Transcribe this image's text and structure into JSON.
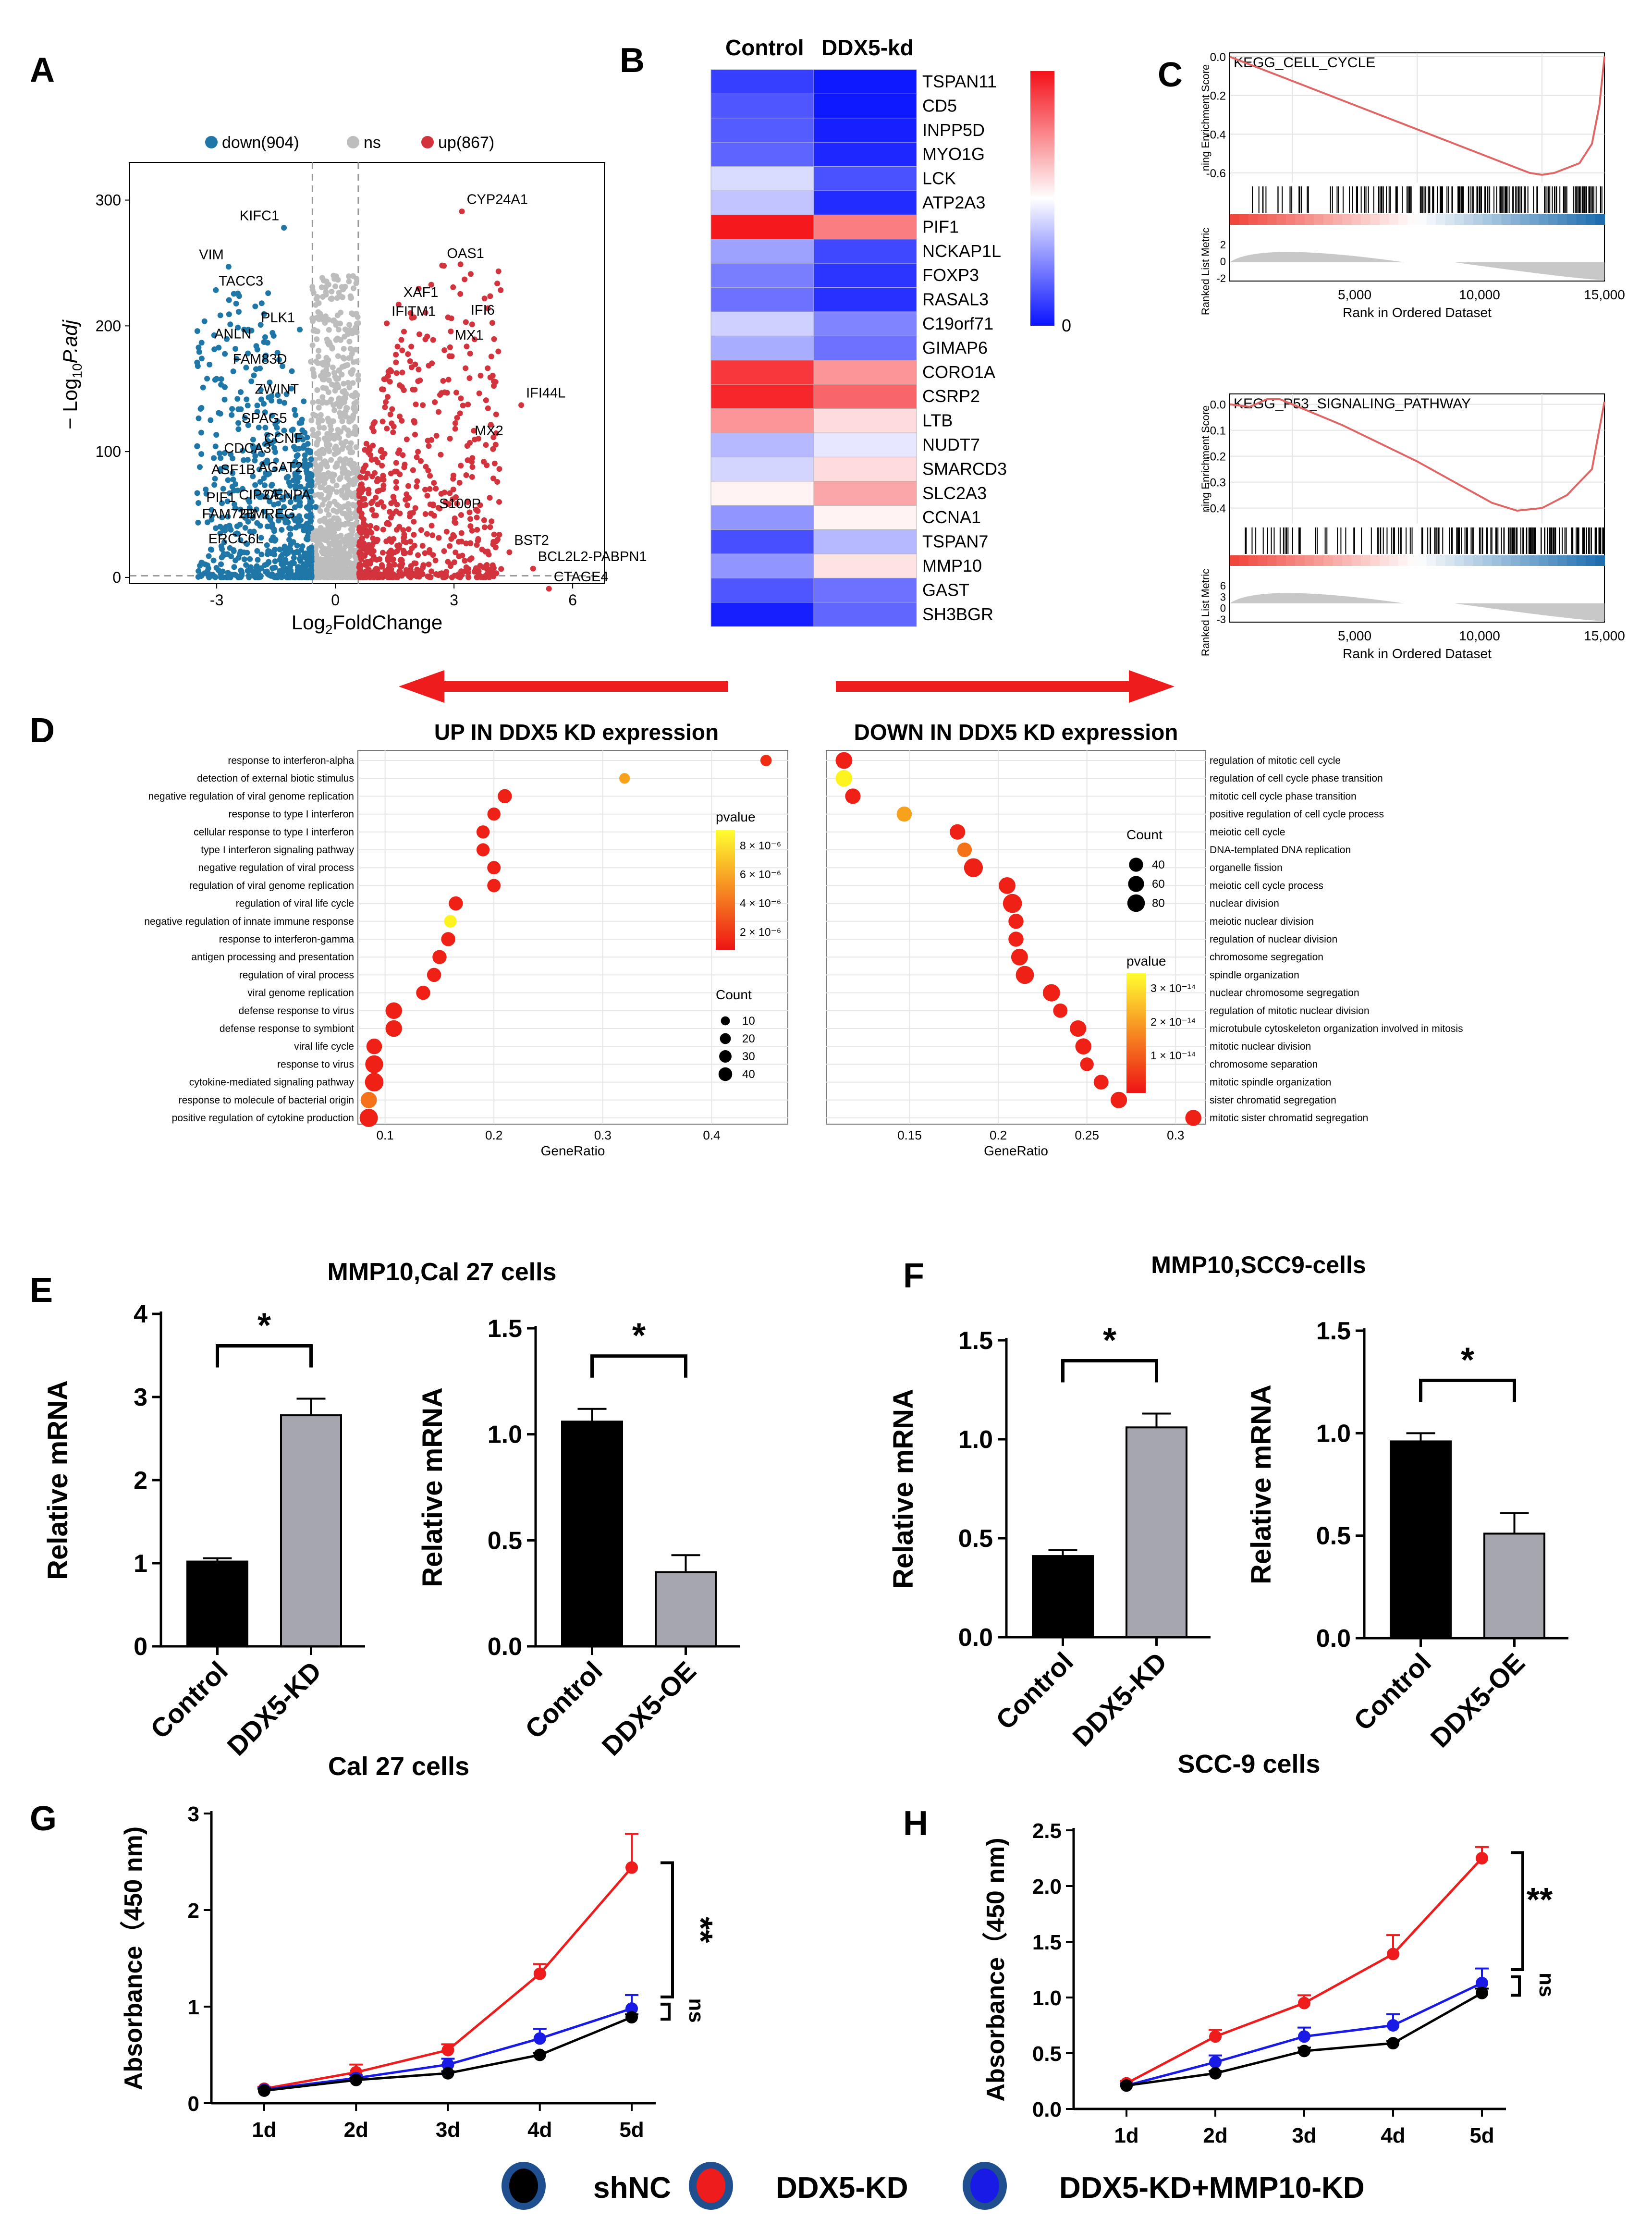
{
  "panel_letters": [
    "A",
    "B",
    "C",
    "D",
    "E",
    "F",
    "G",
    "H"
  ],
  "colors": {
    "down": "#1f77a8",
    "ns": "#bdbdbd",
    "up": "#d2333c",
    "red": "#ee1c1c",
    "blue": "#1a1ae6",
    "black": "#000000",
    "grey": "#a6a6ae"
  },
  "chart_data": [
    {
      "id": "A",
      "type": "scatter",
      "xlabel": "Log2FoldChange",
      "ylabel": "-Log10P.adj",
      "xlim": [
        -5.2,
        6.8
      ],
      "ylim": [
        -5,
        330
      ],
      "xticks": [
        -3,
        0,
        3,
        6
      ],
      "yticks": [
        0,
        100,
        200,
        300
      ],
      "legend": [
        "down(904)",
        "ns",
        "up(867)"
      ],
      "thresholds": {
        "log2fc": [
          -0.58,
          0.58
        ],
        "padj": 1.3
      },
      "labels": [
        {
          "text": "KIFC1",
          "x": -1.3,
          "y": 284
        },
        {
          "text": "VIM",
          "x": -2.7,
          "y": 253
        },
        {
          "text": "TACC3",
          "x": -1.7,
          "y": 232
        },
        {
          "text": "PLK1",
          "x": -0.9,
          "y": 203
        },
        {
          "text": "ANLN",
          "x": -2.0,
          "y": 190
        },
        {
          "text": "FAM83D",
          "x": -1.1,
          "y": 170
        },
        {
          "text": "ZWINT",
          "x": -0.8,
          "y": 146
        },
        {
          "text": "SPAG5",
          "x": -1.1,
          "y": 123
        },
        {
          "text": "CCNF",
          "x": -0.7,
          "y": 107
        },
        {
          "text": "CDCA3",
          "x": -1.5,
          "y": 99
        },
        {
          "text": "AGAT2",
          "x": -0.7,
          "y": 84
        },
        {
          "text": "ASF1B",
          "x": -1.9,
          "y": 82
        },
        {
          "text": "CIP2A",
          "x": -1.3,
          "y": 62
        },
        {
          "text": "CENPA",
          "x": -0.5,
          "y": 62
        },
        {
          "text": "PIF1",
          "x": -2.4,
          "y": 60
        },
        {
          "text": "FAM72B",
          "x": -1.9,
          "y": 47
        },
        {
          "text": "PIMREG",
          "x": -0.9,
          "y": 47
        },
        {
          "text": "ERCC6L",
          "x": -1.7,
          "y": 27
        },
        {
          "text": "CYP24A1",
          "x": 3.2,
          "y": 297
        },
        {
          "text": "OAS1",
          "x": 2.7,
          "y": 254
        },
        {
          "text": "XAF1",
          "x": 1.6,
          "y": 223
        },
        {
          "text": "IFI6",
          "x": 3.3,
          "y": 209
        },
        {
          "text": "IFITM1",
          "x": 1.3,
          "y": 208
        },
        {
          "text": "MX1",
          "x": 2.9,
          "y": 189
        },
        {
          "text": "IFI44L",
          "x": 4.7,
          "y": 143
        },
        {
          "text": "MX2",
          "x": 3.4,
          "y": 113
        },
        {
          "text": "S100P",
          "x": 2.5,
          "y": 55
        },
        {
          "text": "BST2",
          "x": 4.4,
          "y": 26
        },
        {
          "text": "BCL2L2-PABPN1",
          "x": 5.0,
          "y": 13
        },
        {
          "text": "CTAGE4",
          "x": 5.4,
          "y": -3
        }
      ]
    },
    {
      "id": "B",
      "type": "heatmap",
      "columns": [
        "Control",
        "DDX5-kd"
      ],
      "rows": [
        "TSPAN11",
        "CD5",
        "INPP5D",
        "MYO1G",
        "LCK",
        "ATP2A3",
        "PIF1",
        "NCKAP1L",
        "FOXP3",
        "RASAL3",
        "C19orf71",
        "GIMAP6",
        "CORO1A",
        "CSRP2",
        "LTB",
        "NUDT7",
        "SMARCD3",
        "SLC2A3",
        "CCNA1",
        "TSPAN7",
        "MMP10",
        "GAST",
        "SH3BGR"
      ],
      "values": [
        [
          -0.82,
          -0.98
        ],
        [
          -0.72,
          -0.98
        ],
        [
          -0.7,
          -0.95
        ],
        [
          -0.66,
          -0.92
        ],
        [
          -0.15,
          -0.74
        ],
        [
          -0.25,
          -0.9
        ],
        [
          0.98,
          0.55
        ],
        [
          -0.4,
          -0.78
        ],
        [
          -0.55,
          -0.86
        ],
        [
          -0.6,
          -0.88
        ],
        [
          -0.2,
          -0.52
        ],
        [
          -0.35,
          -0.6
        ],
        [
          0.85,
          0.45
        ],
        [
          0.92,
          0.65
        ],
        [
          0.45,
          0.15
        ],
        [
          -0.3,
          -0.1
        ],
        [
          -0.18,
          0.15
        ],
        [
          0.05,
          0.38
        ],
        [
          -0.45,
          0.05
        ],
        [
          -0.75,
          -0.3
        ],
        [
          -0.45,
          0.12
        ],
        [
          -0.72,
          -0.6
        ],
        [
          -0.95,
          -0.65
        ]
      ],
      "legend": {
        "low": "0"
      }
    },
    {
      "id": "C1",
      "type": "line",
      "title": "KEGG_CELL_CYCLE",
      "ylabel": "ning Enrichment Score",
      "ylabel2": "Ranked List Metric",
      "xlabel": "Rank in Ordered Dataset",
      "xticks": [
        5000,
        10000,
        15000
      ],
      "yticks": [
        0.0,
        -0.2,
        -0.4,
        -0.6
      ],
      "ylim": [
        -0.65,
        0.02
      ],
      "metric_ticks": [
        2,
        0,
        -2
      ],
      "x": [
        0,
        1000,
        2000,
        4000,
        6000,
        8000,
        10000,
        11000,
        12000,
        12500,
        13000,
        14000,
        14500,
        14800,
        15000
      ],
      "y": [
        0.0,
        -0.05,
        -0.1,
        -0.2,
        -0.3,
        -0.4,
        -0.5,
        -0.55,
        -0.6,
        -0.61,
        -0.6,
        -0.55,
        -0.45,
        -0.25,
        0.0
      ]
    },
    {
      "id": "C2",
      "type": "line",
      "title": "KEGG_P53_SIGNALING_PATHWAY",
      "ylabel": "ning Enrichment Score",
      "ylabel2": "Ranked List Metric",
      "xlabel": "Rank in Ordered Dataset",
      "xticks": [
        5000,
        10000,
        15000
      ],
      "yticks": [
        0.0,
        -0.1,
        -0.2,
        -0.3,
        -0.4
      ],
      "ylim": [
        -0.46,
        0.04
      ],
      "metric_ticks": [
        6,
        3,
        0,
        -3
      ],
      "x": [
        0,
        800,
        1500,
        2000,
        3000,
        4500,
        6000,
        7500,
        9000,
        10500,
        11500,
        12500,
        13500,
        14500,
        15000
      ],
      "y": [
        0.0,
        -0.01,
        0.02,
        0.02,
        -0.02,
        -0.08,
        -0.15,
        -0.22,
        -0.3,
        -0.38,
        -0.41,
        -0.4,
        -0.35,
        -0.25,
        0.01
      ]
    },
    {
      "id": "D1",
      "type": "scatter",
      "title": "UP IN DDX5 KD expression",
      "xlabel": "GeneRatio",
      "xticks": [
        0.1,
        0.2,
        0.3,
        0.4
      ],
      "xlim": [
        0.075,
        0.47
      ],
      "terms": [
        "response to interferon-alpha",
        "detection of external biotic stimulus",
        "negative regulation of viral genome replication",
        "response to type I interferon",
        "cellular response to type I interferon",
        "type I interferon signaling pathway",
        "negative regulation of viral process",
        "regulation of viral genome replication",
        "regulation of viral life cycle",
        "negative regulation of innate immune response",
        "response to interferon-gamma",
        "antigen processing and presentation",
        "regulation of viral process",
        "viral genome replication",
        "defense response to virus",
        "defense response to symbiont",
        "viral life cycle",
        "response to virus",
        "cytokine-mediated signaling pathway",
        "response to molecule of bacterial origin",
        "positive regulation of cytokine production"
      ],
      "gene_ratio": [
        0.45,
        0.32,
        0.21,
        0.2,
        0.19,
        0.19,
        0.2,
        0.2,
        0.165,
        0.16,
        0.158,
        0.15,
        0.145,
        0.135,
        0.108,
        0.108,
        0.09,
        0.09,
        0.09,
        0.085,
        0.085
      ],
      "count": [
        8,
        6,
        18,
        14,
        14,
        14,
        15,
        15,
        18,
        12,
        18,
        18,
        18,
        18,
        30,
        30,
        25,
        38,
        42,
        28,
        40
      ],
      "pvalue_score": [
        0.1,
        0.6,
        0.05,
        0.05,
        0.05,
        0.05,
        0.05,
        0.05,
        0.05,
        0.95,
        0.05,
        0.05,
        0.05,
        0.05,
        0.05,
        0.05,
        0.05,
        0.05,
        0.05,
        0.4,
        0.05
      ],
      "pvalue_legend": {
        "title": "pvalue",
        "ticks": [
          "8 × 10⁻⁶",
          "6 × 10⁻⁶",
          "4 × 10⁻⁶",
          "2 × 10⁻⁶"
        ]
      },
      "count_legend": {
        "title": "Count",
        "values": [
          10,
          20,
          30,
          40
        ]
      }
    },
    {
      "id": "D2",
      "type": "scatter",
      "title": "DOWN IN DDX5 KD expression",
      "xlabel": "GeneRatio",
      "xticks": [
        0.15,
        0.2,
        0.25,
        0.3
      ],
      "xlim": [
        0.103,
        0.317
      ],
      "terms": [
        "regulation of mitotic cell cycle",
        "regulation of cell cycle phase transition",
        "mitotic cell cycle phase transition",
        "positive regulation of cell cycle process",
        "meiotic cell cycle",
        "DNA-templated DNA replication",
        "organelle fission",
        "meiotic cell cycle process",
        "nuclear division",
        "meiotic nuclear division",
        "regulation of nuclear division",
        "chromosome segregation",
        "spindle organization",
        "nuclear chromosome segregation",
        "regulation of mitotic nuclear division",
        "microtubule cytoskeleton organization involved in mitosis",
        "mitotic nuclear division",
        "chromosome separation",
        "mitotic spindle organization",
        "sister chromatid segregation",
        "mitotic sister chromatid segregation"
      ],
      "gene_ratio": [
        0.113,
        0.113,
        0.118,
        0.147,
        0.177,
        0.181,
        0.186,
        0.205,
        0.208,
        0.21,
        0.21,
        0.212,
        0.215,
        0.23,
        0.235,
        0.245,
        0.248,
        0.25,
        0.258,
        0.268,
        0.31
      ],
      "count": [
        62,
        62,
        48,
        45,
        48,
        40,
        88,
        62,
        90,
        45,
        45,
        62,
        78,
        68,
        38,
        58,
        55,
        32,
        42,
        58,
        55
      ],
      "pvalue_score": [
        0.05,
        0.95,
        0.05,
        0.6,
        0.05,
        0.4,
        0.05,
        0.05,
        0.05,
        0.05,
        0.05,
        0.05,
        0.05,
        0.05,
        0.05,
        0.05,
        0.05,
        0.05,
        0.05,
        0.05,
        0.05
      ],
      "pvalue_legend": {
        "title": "pvalue",
        "ticks": [
          "3 × 10⁻¹⁴",
          "2 × 10⁻¹⁴",
          "1 × 10⁻¹⁴"
        ]
      },
      "count_legend": {
        "title": "Count",
        "values": [
          40,
          60,
          80
        ]
      }
    },
    {
      "id": "E1",
      "type": "bar",
      "ylabel": "Relative mRNA",
      "categories": [
        "Control",
        "DDX5-KD"
      ],
      "values": [
        1.02,
        2.78
      ],
      "errors": [
        0.04,
        0.2
      ],
      "ylim": [
        0,
        4
      ],
      "yticks": [
        "0",
        "1",
        "2",
        "3",
        "4"
      ],
      "sig": "*"
    },
    {
      "id": "E2",
      "type": "bar",
      "ylabel": "Relative mRNA",
      "categories": [
        "Control",
        "DDX5-OE"
      ],
      "values": [
        1.06,
        0.35
      ],
      "errors": [
        0.06,
        0.08
      ],
      "ylim": [
        0,
        1.5
      ],
      "yticks": [
        "0.0",
        "0.5",
        "1.0",
        "1.5"
      ],
      "sig": "*"
    },
    {
      "id": "F1",
      "type": "bar",
      "ylabel": "Relative mRNA",
      "categories": [
        "Control",
        "DDX5-KD"
      ],
      "values": [
        0.41,
        1.06
      ],
      "errors": [
        0.03,
        0.07
      ],
      "ylim": [
        0,
        1.5
      ],
      "yticks": [
        "0.0",
        "0.5",
        "1.0",
        "1.5"
      ],
      "sig": "*"
    },
    {
      "id": "F2",
      "type": "bar",
      "ylabel": "Relative mRNA",
      "categories": [
        "Control",
        "DDX5-OE"
      ],
      "values": [
        0.96,
        0.51
      ],
      "errors": [
        0.04,
        0.1
      ],
      "ylim": [
        0,
        1.5
      ],
      "yticks": [
        "0.0",
        "0.5",
        "1.0",
        "1.5"
      ],
      "sig": "*"
    },
    {
      "id": "G",
      "type": "line",
      "title": "Cal 27 cells",
      "ylabel": "Absorbance（450 nm)",
      "categories": [
        "1d",
        "2d",
        "3d",
        "4d",
        "5d"
      ],
      "ylim": [
        0,
        3
      ],
      "yticks": [
        "0",
        "1",
        "2",
        "3"
      ],
      "series": [
        {
          "name": "shNC",
          "color": "black",
          "values": [
            0.13,
            0.24,
            0.31,
            0.5,
            0.89
          ],
          "errors": [
            0.02,
            0.02,
            0.02,
            0.02,
            0.03
          ]
        },
        {
          "name": "DDX5-KD",
          "color": "red",
          "values": [
            0.15,
            0.32,
            0.55,
            1.34,
            2.44
          ],
          "errors": [
            0.02,
            0.08,
            0.06,
            0.1,
            0.35
          ]
        },
        {
          "name": "DDX5-KD+MMP10-KD",
          "color": "blue",
          "values": [
            0.14,
            0.26,
            0.4,
            0.67,
            0.98
          ],
          "errors": [
            0.02,
            0.03,
            0.06,
            0.1,
            0.14
          ]
        }
      ],
      "sig": [
        "**",
        "ns"
      ]
    },
    {
      "id": "H",
      "type": "line",
      "title": "SCC-9 cells",
      "ylabel": "Absorbance（450 nm)",
      "categories": [
        "1d",
        "2d",
        "3d",
        "4d",
        "5d"
      ],
      "ylim": [
        0,
        2.5
      ],
      "yticks": [
        "0.0",
        "0.5",
        "1.0",
        "1.5",
        "2.0",
        "2.5"
      ],
      "series": [
        {
          "name": "shNC",
          "color": "black",
          "values": [
            0.21,
            0.32,
            0.52,
            0.59,
            1.04
          ],
          "errors": [
            0.01,
            0.02,
            0.03,
            0.02,
            0.04
          ]
        },
        {
          "name": "DDX5-KD",
          "color": "red",
          "values": [
            0.23,
            0.65,
            0.95,
            1.39,
            2.25
          ],
          "errors": [
            0.02,
            0.06,
            0.07,
            0.17,
            0.1
          ]
        },
        {
          "name": "DDX5-KD+MMP10-KD",
          "color": "blue",
          "values": [
            0.21,
            0.42,
            0.65,
            0.75,
            1.13
          ],
          "errors": [
            0.02,
            0.06,
            0.08,
            0.1,
            0.13
          ]
        }
      ],
      "sig": [
        "**",
        "ns"
      ]
    }
  ],
  "legend_bottom": [
    "shNC",
    "DDX5-KD",
    "DDX5-KD+MMP10-KD"
  ],
  "panel_titles": {
    "E": "MMP10,Cal 27 cells",
    "F": "MMP10,SCC9-cells"
  }
}
